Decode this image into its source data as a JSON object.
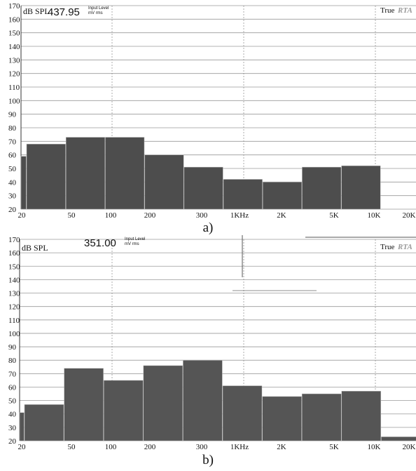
{
  "figure": {
    "captions": [
      "a)",
      "b)"
    ]
  },
  "panels": [
    {
      "unit_label": "dB SPL",
      "input_level_value": "437.95",
      "input_level_label_line1": "Input Level",
      "input_level_label_line2": "mV rms",
      "brand_true": "True",
      "brand_rta": "RTA"
    },
    {
      "unit_label": "dB SPL",
      "input_level_value": "351.00",
      "input_level_label_line1": "Input Level",
      "input_level_label_line2": "mV rms",
      "brand_true": "True",
      "brand_rta": "RTA"
    }
  ],
  "chart_data": [
    {
      "type": "bar",
      "title": "",
      "xlabel": "",
      "ylabel": "dB SPL",
      "ylim": [
        20,
        170
      ],
      "yticks": [
        20,
        30,
        40,
        50,
        60,
        70,
        80,
        90,
        100,
        110,
        120,
        130,
        140,
        150,
        160,
        170
      ],
      "xticks": [
        "20",
        "50",
        "100",
        "200",
        "300",
        "1KHz",
        "2K",
        "5K",
        "10K",
        "20K"
      ],
      "x_scale": "log",
      "grid": true,
      "legend": "none",
      "bar_color": "#4d4d4d",
      "bands": [
        "20",
        "31.5",
        "63",
        "125",
        "250",
        "500",
        "1K",
        "2K",
        "4K",
        "8K"
      ],
      "values": [
        59,
        68,
        73,
        73,
        60,
        51,
        42,
        40,
        51,
        52
      ]
    },
    {
      "type": "bar",
      "title": "",
      "xlabel": "",
      "ylabel": "dB SPL",
      "ylim": [
        20,
        170
      ],
      "yticks": [
        20,
        30,
        40,
        50,
        60,
        70,
        80,
        90,
        100,
        110,
        120,
        130,
        140,
        150,
        160,
        170
      ],
      "xticks": [
        "20",
        "50",
        "100",
        "200",
        "300",
        "1KHz",
        "2K",
        "5K",
        "10K",
        "20K"
      ],
      "x_scale": "log",
      "grid": true,
      "legend": "none",
      "bar_color": "#555555",
      "bands": [
        "20",
        "31.5",
        "63",
        "125",
        "250",
        "500",
        "1K",
        "2K",
        "4K",
        "8K",
        "16K"
      ],
      "values": [
        41,
        47,
        74,
        65,
        76,
        80,
        61,
        53,
        55,
        57,
        23
      ]
    }
  ]
}
